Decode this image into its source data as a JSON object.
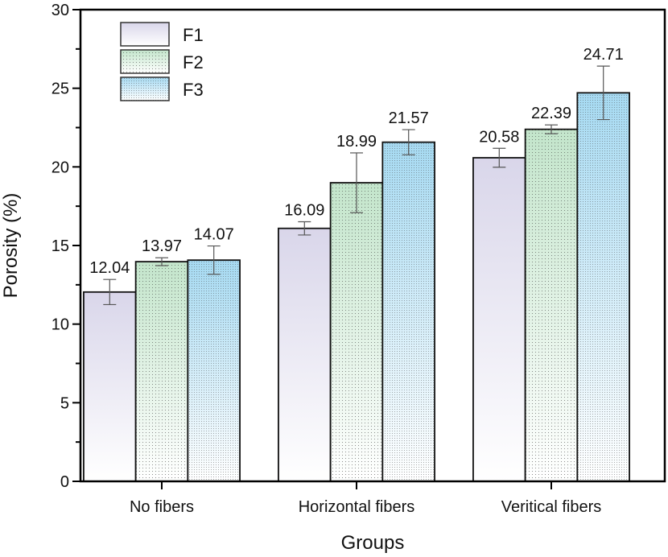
{
  "chart_data": {
    "type": "bar",
    "title": "",
    "xlabel": "Groups",
    "ylabel": "Porosity (%)",
    "ylim": [
      0,
      30
    ],
    "yticks": [
      0,
      5,
      10,
      15,
      20,
      25,
      30
    ],
    "ytick_labels": [
      "0",
      "5",
      "10",
      "15",
      "20",
      "25",
      "30"
    ],
    "grid": false,
    "legend_position": "top-left",
    "categories": [
      "No fibers",
      "Horizontal fibers",
      "Veritical fibers"
    ],
    "series": [
      {
        "name": "F1",
        "color": "#d9d6ea",
        "values": [
          12.04,
          16.09,
          20.58
        ],
        "errors": [
          0.8,
          0.42,
          0.6
        ],
        "labels": [
          "12.04",
          "16.09",
          "20.58"
        ]
      },
      {
        "name": "F2",
        "color": "#c3e5cb",
        "values": [
          13.97,
          18.99,
          22.39
        ],
        "errors": [
          0.25,
          1.9,
          0.28
        ],
        "labels": [
          "13.97",
          "18.99",
          "22.39"
        ]
      },
      {
        "name": "F3",
        "color": "#a6daf2",
        "values": [
          14.07,
          21.57,
          24.71
        ],
        "errors": [
          0.9,
          0.8,
          1.7
        ],
        "labels": [
          "14.07",
          "21.57",
          "24.71"
        ]
      }
    ]
  }
}
